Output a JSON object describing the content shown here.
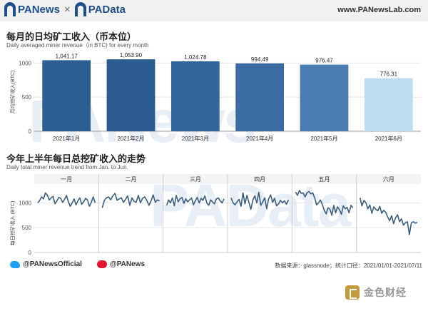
{
  "header": {
    "brand1": "PANews",
    "separator": "×",
    "brand2": "PAData",
    "site": "www.PANewsLab.com"
  },
  "section1": {
    "title": "每月的日均矿工收入（币本位）",
    "subtitle": "Daily averaged miner revenue（in BTC) for every month"
  },
  "section2": {
    "title": "今年上半年每日总挖矿收入的走势",
    "subtitle": "Daily total miner revenue trend from Jan. to Jun."
  },
  "watermark": "PANews",
  "watermark2": "PAData",
  "footer": {
    "twitter": "@PANewsOfficial",
    "weibo": "@PANews",
    "source": "数据来源：glassnode；统计口径：2021/01/01-2021/07/11"
  },
  "stamp": "金色财经",
  "colors": {
    "bar_dark": "#2b5d94",
    "bar_mid": "#3b6fa8",
    "bar_light": "#bcdaf0",
    "line": "#3d5e80"
  },
  "chart_data": [
    {
      "type": "bar",
      "title": "每月的日均矿工收入（币本位）",
      "ylabel": "月均挖矿收入(BTC)",
      "categories": [
        "2021年1月",
        "2021年2月",
        "2021年3月",
        "2021年4月",
        "2021年5月",
        "2021年6月"
      ],
      "values": [
        1041.17,
        1053.9,
        1024.78,
        994.49,
        976.47,
        776.31
      ],
      "value_labels": [
        "1,041.17",
        "1,053.90",
        "1,024.78",
        "994.49",
        "976.47",
        "776.31"
      ],
      "bar_colors": [
        "#2c5d93",
        "#2a5a8f",
        "#33649a",
        "#3a6ca3",
        "#4a7cb2",
        "#bcdcf2"
      ],
      "yticks": [
        0,
        500,
        1000
      ],
      "ylim": [
        0,
        1150
      ]
    },
    {
      "type": "line",
      "title": "今年上半年每日总挖矿收入的走势",
      "ylabel": "每日挖矿收入 (BTC)",
      "panels": [
        "一月",
        "二月",
        "三月",
        "四月",
        "五月",
        "六月"
      ],
      "yticks": [
        0,
        500,
        1000
      ],
      "ylim": [
        0,
        1350
      ],
      "series": [
        [
          1000,
          1050,
          1120,
          1080,
          1200,
          1150,
          1060,
          1100,
          1130,
          980,
          1040,
          1110,
          1090,
          1010,
          1070,
          1150,
          1020,
          930,
          1000,
          1080,
          960,
          1040,
          1100,
          970,
          1020,
          1090,
          1060,
          930,
          1010,
          1120,
          1000
        ],
        [
          900,
          1050,
          1100,
          1120,
          1060,
          1140,
          1190,
          1050,
          1080,
          1100,
          1010,
          1070,
          1140,
          950,
          1100,
          1030,
          1010,
          1150,
          1000,
          1090,
          1120,
          1050,
          950,
          1040,
          1160,
          1010,
          1060,
          1040
        ],
        [
          950,
          1060,
          1000,
          1100,
          940,
          1150,
          1020,
          1080,
          1110,
          990,
          1080,
          1020,
          1060,
          1100,
          960,
          1040,
          1110,
          1000,
          1090,
          1050,
          1140,
          1000,
          950,
          1060,
          1020,
          980,
          1080,
          1100,
          1040,
          1000,
          1080
        ],
        [
          1100,
          1000,
          960,
          1020,
          1070,
          930,
          1200,
          980,
          1150,
          1010,
          870,
          1060,
          1140,
          1000,
          1210,
          950,
          1020,
          1100,
          880,
          1080,
          1160,
          1010,
          1090,
          940,
          980,
          1050,
          1000,
          1040,
          970,
          1060
        ],
        [
          1220,
          1150,
          1250,
          1190,
          1200,
          1120,
          1200,
          1230,
          1180,
          1200,
          1100,
          960,
          1000,
          1060,
          970,
          850,
          780,
          900,
          870,
          750,
          950,
          800,
          920,
          860,
          770,
          940,
          880,
          910,
          800,
          950,
          900
        ],
        [
          1100,
          940,
          1050,
          1000,
          880,
          960,
          790,
          920,
          870,
          840,
          930,
          790,
          850,
          810,
          720,
          640,
          740,
          580,
          700,
          760,
          620,
          680,
          550,
          600,
          620,
          360,
          600,
          620,
          590,
          610
        ]
      ]
    }
  ]
}
